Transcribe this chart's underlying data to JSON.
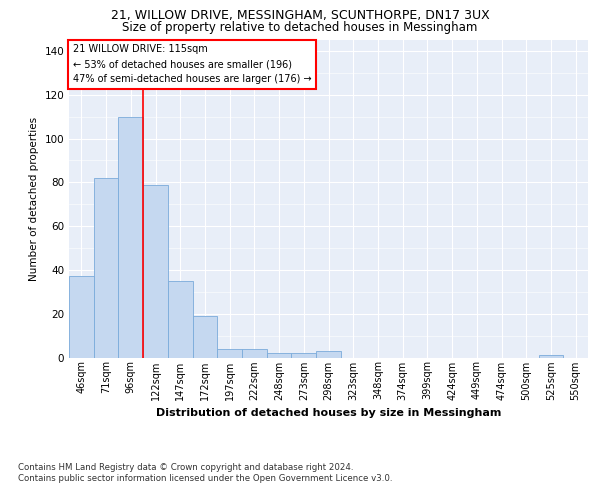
{
  "title1": "21, WILLOW DRIVE, MESSINGHAM, SCUNTHORPE, DN17 3UX",
  "title2": "Size of property relative to detached houses in Messingham",
  "xlabel": "Distribution of detached houses by size in Messingham",
  "ylabel": "Number of detached properties",
  "categories": [
    "46sqm",
    "71sqm",
    "96sqm",
    "122sqm",
    "147sqm",
    "172sqm",
    "197sqm",
    "222sqm",
    "248sqm",
    "273sqm",
    "298sqm",
    "323sqm",
    "348sqm",
    "374sqm",
    "399sqm",
    "424sqm",
    "449sqm",
    "474sqm",
    "500sqm",
    "525sqm",
    "550sqm"
  ],
  "values": [
    37,
    82,
    110,
    79,
    35,
    19,
    4,
    4,
    2,
    2,
    3,
    0,
    0,
    0,
    0,
    0,
    0,
    0,
    0,
    1,
    0
  ],
  "bar_color": "#c5d8f0",
  "bar_edge_color": "#7aabda",
  "red_line_x": 2.5,
  "annotation_text": "21 WILLOW DRIVE: 115sqm\n← 53% of detached houses are smaller (196)\n47% of semi-detached houses are larger (176) →",
  "ylim": [
    0,
    145
  ],
  "yticks": [
    0,
    20,
    40,
    60,
    80,
    100,
    120,
    140
  ],
  "bg_color": "#e8eef8",
  "footer1": "Contains HM Land Registry data © Crown copyright and database right 2024.",
  "footer2": "Contains public sector information licensed under the Open Government Licence v3.0."
}
